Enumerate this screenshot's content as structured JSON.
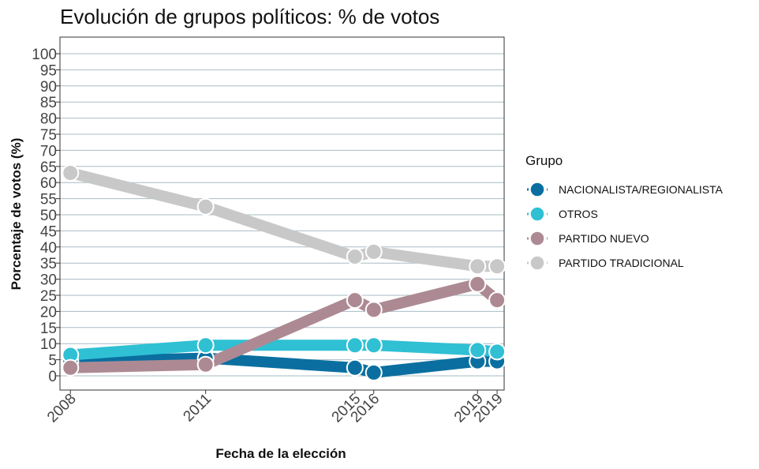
{
  "chart_data": {
    "type": "line",
    "title": "Evolución de grupos políticos: % de votos",
    "xlabel": "Fecha de la elección",
    "ylabel": "Porcentaje de votos (%)",
    "x_tick_labels": [
      "2008",
      "2011",
      "2015",
      "2016",
      "2019",
      "2019"
    ],
    "x_dates": [
      "2008-03-09",
      "2011-11-20",
      "2015-12-20",
      "2016-06-26",
      "2019-04-28",
      "2019-11-10"
    ],
    "ylim": [
      0,
      100
    ],
    "y_ticks": [
      "0",
      "5",
      "10",
      "15",
      "20",
      "25",
      "30",
      "35",
      "40",
      "45",
      "50",
      "55",
      "60",
      "65",
      "70",
      "75",
      "80",
      "85",
      "90",
      "95",
      "100"
    ],
    "grid": "horizontal",
    "legend": {
      "title": "Grupo",
      "placement": "right"
    },
    "series": [
      {
        "name": "NACIONALISTA/REGIONALISTA",
        "color": "#0a6fa0",
        "values": [
          4.5,
          5.5,
          2.5,
          1,
          4.5,
          4.5
        ]
      },
      {
        "name": "OTROS",
        "color": "#2fc0d4",
        "values": [
          6.5,
          9.5,
          9.5,
          9.5,
          8,
          7.5
        ]
      },
      {
        "name": "PARTIDO NUEVO",
        "color": "#ad8a93",
        "values": [
          2.5,
          3.5,
          23.5,
          20.5,
          28.5,
          23.5
        ]
      },
      {
        "name": "PARTIDO TRADICIONAL",
        "color": "#c8c8c8",
        "values": [
          63,
          52.5,
          37,
          38.5,
          34,
          34
        ]
      }
    ]
  }
}
